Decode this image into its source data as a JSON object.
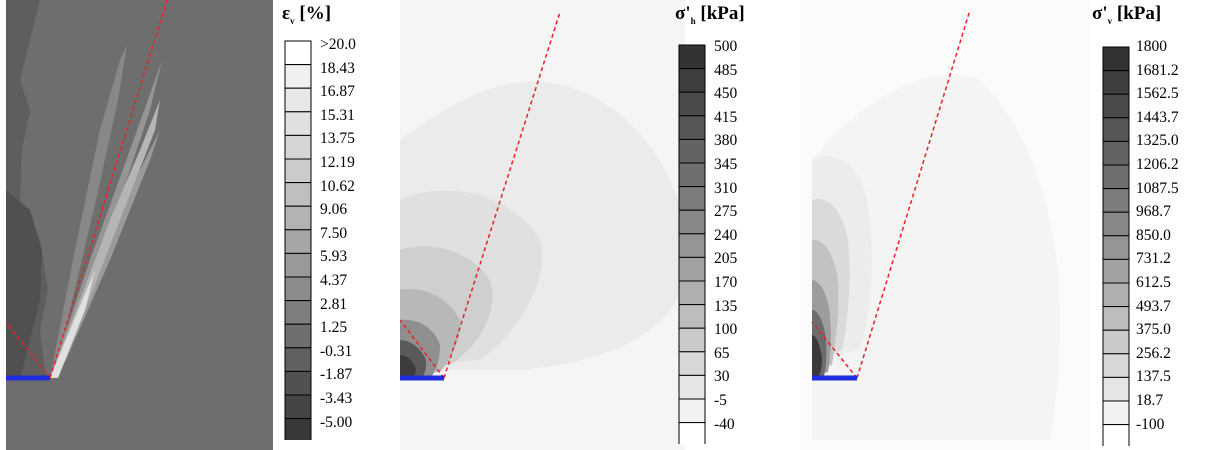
{
  "panels": [
    {
      "id": "strain",
      "legend_title_main": "ε",
      "legend_title_sub": "v",
      "legend_title_tail": " [%]",
      "legend_labels": [
        ">20.0",
        "18.43",
        "16.87",
        "15.31",
        "13.75",
        "12.19",
        "10.62",
        "9.06",
        "7.50",
        "5.93",
        "4.37",
        "2.81",
        "1.25",
        "-0.31",
        "-1.87",
        "-3.43",
        "-5.00"
      ],
      "legend_colors": [
        "#ffffff",
        "#f0f0f0",
        "#e8e8e8",
        "#e0e0e0",
        "#d6d6d6",
        "#cbcbcb",
        "#bfbfbf",
        "#b3b3b3",
        "#a6a6a6",
        "#999999",
        "#8c8c8c",
        "#7e7e7e",
        "#6f6f6f",
        "#606060",
        "#515151",
        "#444444",
        "#383838"
      ]
    },
    {
      "id": "horizontal-stress",
      "legend_title_main": "σ'",
      "legend_title_sub": "h",
      "legend_title_tail": " [kPa]",
      "legend_labels": [
        "500",
        "485",
        "450",
        "415",
        "380",
        "345",
        "310",
        "275",
        "240",
        "205",
        "170",
        "135",
        "100",
        "65",
        "30",
        "-5",
        "-40"
      ],
      "legend_colors": [
        "#333333",
        "#3f3f3f",
        "#4b4b4b",
        "#575757",
        "#636363",
        "#6f6f6f",
        "#7c7c7c",
        "#888888",
        "#959595",
        "#a2a2a2",
        "#afafaf",
        "#bdbdbd",
        "#cacaca",
        "#d8d8d8",
        "#e5e5e5",
        "#f2f2f2",
        "#ffffff"
      ]
    },
    {
      "id": "vertical-stress",
      "legend_title_main": "σ'",
      "legend_title_sub": "v",
      "legend_title_tail": " [kPa]",
      "legend_labels": [
        "1800",
        "1681.2",
        "1562.5",
        "1443.7",
        "1325.0",
        "1206.2",
        "1087.5",
        "968.7",
        "850.0",
        "731.2",
        "612.5",
        "493.7",
        "375.0",
        "256.2",
        "137.5",
        "18.7",
        "-100"
      ],
      "legend_colors": [
        "#333333",
        "#3f3f3f",
        "#4b4b4b",
        "#575757",
        "#636363",
        "#6f6f6f",
        "#7c7c7c",
        "#888888",
        "#959595",
        "#a2a2a2",
        "#afafaf",
        "#bdbdbd",
        "#cacaca",
        "#d8d8d8",
        "#e5e5e5",
        "#f2f2f2",
        "#ffffff"
      ]
    }
  ],
  "colors": {
    "failure_line": "#e8202a",
    "footing": "#1f2de0",
    "strain_background": "#6e6e6e"
  }
}
